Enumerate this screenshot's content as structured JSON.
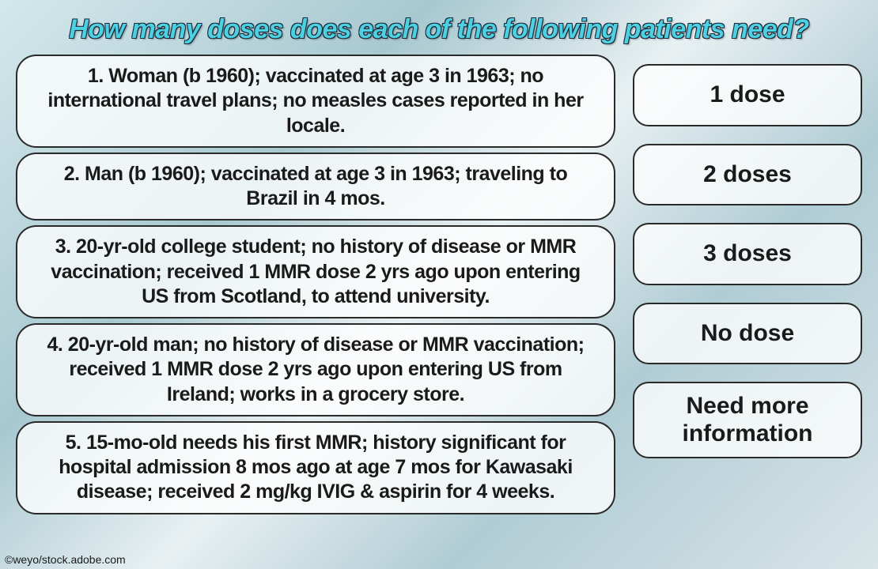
{
  "title": "How many doses does each of the following patients need?",
  "questions": [
    {
      "text": "1. Woman (b 1960); vaccinated at age 3 in 1963; no international travel plans; no measles cases reported in her locale."
    },
    {
      "text": "2. Man (b 1960); vaccinated at age 3 in 1963; traveling to Brazil in 4 mos."
    },
    {
      "text": "3. 20-yr-old college student; no history of disease or MMR vaccination; received 1 MMR dose 2 yrs ago upon entering US from Scotland, to attend university."
    },
    {
      "text": "4. 20-yr-old man; no history of disease or MMR vaccination; received 1 MMR dose 2 yrs ago upon entering US from Ireland; works in a grocery store."
    },
    {
      "text": "5. 15-mo-old needs his first MMR; history significant for hospital admission 8 mos ago at age 7 mos for Kawasaki disease; received 2 mg/kg IVIG & aspirin for 4 weeks."
    }
  ],
  "answers": [
    {
      "text": "1 dose"
    },
    {
      "text": "2 doses"
    },
    {
      "text": "3 doses"
    },
    {
      "text": "No dose"
    },
    {
      "text": "Need more information",
      "multiline": true
    }
  ],
  "credit": "©weyo/stock.adobe.com",
  "styling": {
    "title_color": "#4dd0e1",
    "title_outline": "#1a2838",
    "title_fontsize": 34,
    "box_bg": "rgba(255,255,255,0.78)",
    "box_border": "#2a2a2a",
    "box_border_radius": 26,
    "answer_border_radius": 20,
    "question_fontsize": 25,
    "answer_fontsize": 30,
    "background_gradient": [
      "#d4e8ec",
      "#a8c8d0",
      "#e8f0f2",
      "#b0ccd4",
      "#d8e4e8"
    ]
  }
}
